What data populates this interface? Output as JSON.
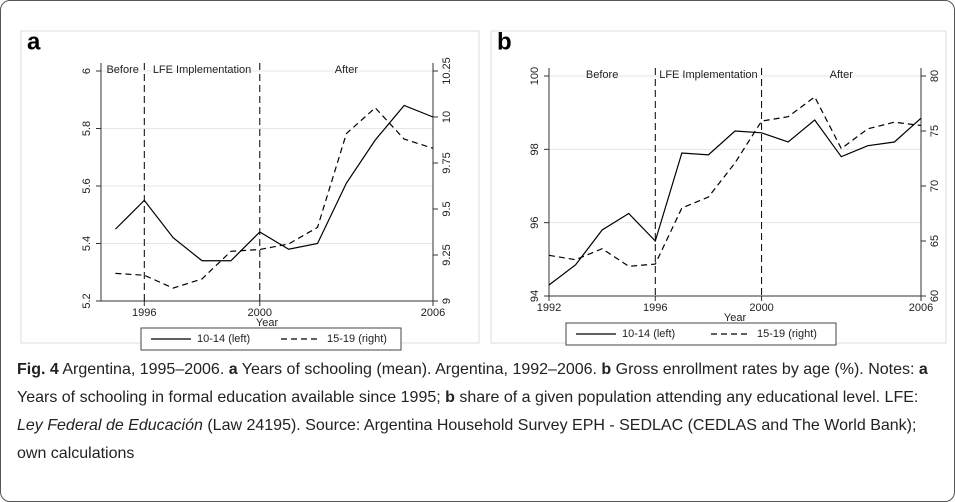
{
  "chart_data": [
    {
      "type": "line",
      "panel": "a",
      "xlabel": "Year",
      "x": [
        1995,
        1996,
        1997,
        1998,
        1999,
        2000,
        2001,
        2002,
        2003,
        2004,
        2005,
        2006
      ],
      "xlim": [
        1994.5,
        2006
      ],
      "xticks": [
        1996,
        2000,
        2006
      ],
      "ylim": [
        5.2,
        6
      ],
      "yticks": [
        5.2,
        5.4,
        5.6,
        5.8,
        6
      ],
      "y2lim": [
        9,
        10.25
      ],
      "y2ticks": [
        9,
        9.25,
        9.5,
        9.75,
        10,
        10.25
      ],
      "grid": true,
      "vlines": [
        1996,
        2000
      ],
      "annotations": [
        "Before",
        "LFE Implementation",
        "After"
      ],
      "series": [
        {
          "name": "10-14 (left)",
          "color": "#000000",
          "dash": false,
          "values": [
            5.45,
            5.55,
            5.42,
            5.34,
            5.34,
            5.44,
            5.38,
            5.4,
            5.61,
            5.76,
            5.88,
            5.84
          ]
        },
        {
          "name": "15-19 (right)",
          "color": "#000000",
          "dash": true,
          "axis": "y2",
          "values": [
            9.15,
            9.14,
            9.07,
            9.12,
            9.27,
            9.28,
            9.31,
            9.4,
            9.91,
            10.05,
            9.88,
            9.83
          ]
        }
      ]
    },
    {
      "type": "line",
      "panel": "b",
      "xlabel": "Year",
      "x": [
        1992,
        1993,
        1994,
        1995,
        1996,
        1997,
        1998,
        1999,
        2000,
        2001,
        2002,
        2003,
        2004,
        2005,
        2006
      ],
      "xlim": [
        1992,
        2006
      ],
      "xticks": [
        1992,
        1996,
        2000,
        2006
      ],
      "ylim": [
        94,
        100
      ],
      "yticks": [
        94,
        96,
        98,
        100
      ],
      "y2lim": [
        60,
        80
      ],
      "y2ticks": [
        60,
        65,
        70,
        75,
        80
      ],
      "grid": true,
      "vlines": [
        1996,
        2000
      ],
      "annotations": [
        "Before",
        "LFE Implementation",
        "After"
      ],
      "series": [
        {
          "name": "10-14 (left)",
          "color": "#000000",
          "dash": false,
          "values": [
            94.3,
            94.85,
            95.8,
            96.25,
            95.5,
            97.9,
            97.85,
            98.5,
            98.45,
            98.2,
            98.8,
            97.8,
            98.1,
            98.2,
            98.85
          ]
        },
        {
          "name": "15-19 (right)",
          "color": "#000000",
          "dash": true,
          "axis": "y2",
          "values": [
            63.7,
            63.3,
            64.3,
            62.7,
            62.9,
            68,
            69,
            72.1,
            75.9,
            76.3,
            78.1,
            73.4,
            75.2,
            75.8,
            75.5
          ]
        }
      ]
    }
  ],
  "caption": [
    "Fig. 4",
    " Argentina, 1995–2006. ",
    "a",
    " Years of schooling (mean). Argentina, 1992–2006. ",
    "b",
    " Gross enrollment rates by age (%). Notes: ",
    "a",
    " Years of schooling in formal education available since 1995; ",
    "b",
    " share of a given population attending any educational level. LFE: ",
    "Ley Federal de Educación",
    " (Law 24195). Source: Argentina Household Survey EPH - SEDLAC (CEDLAS and The World Bank); own calculations"
  ]
}
